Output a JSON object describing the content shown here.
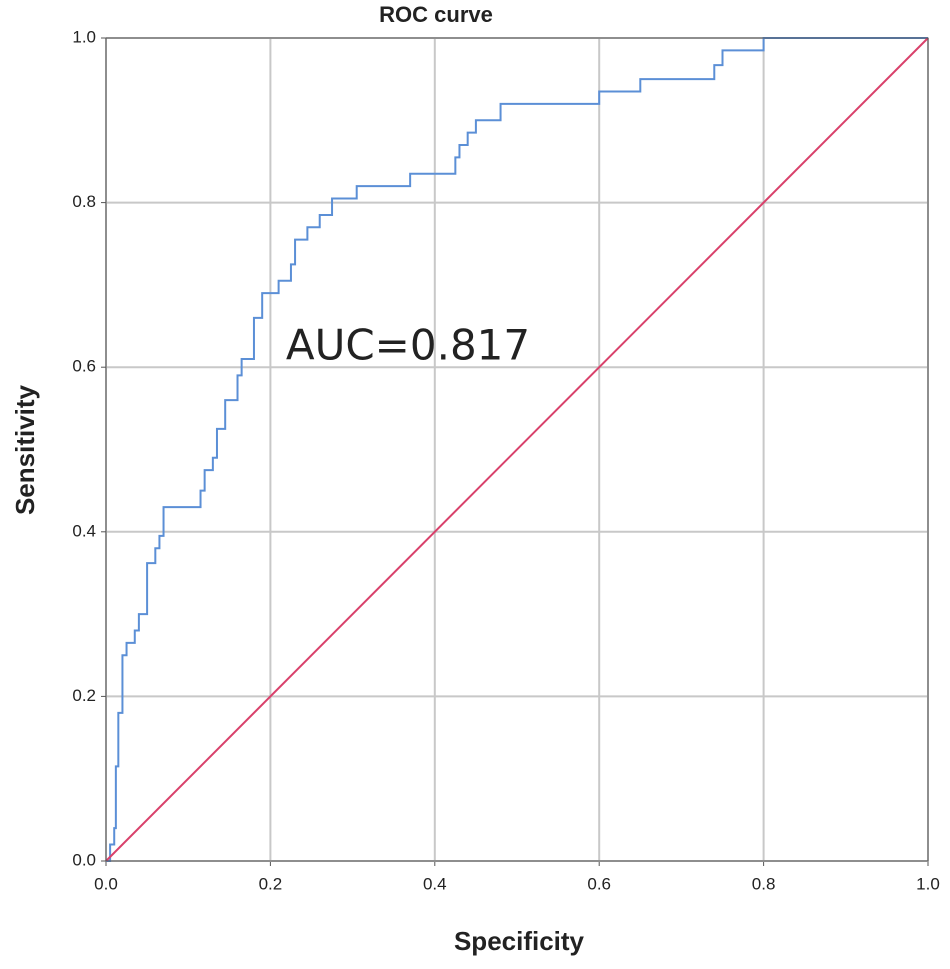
{
  "chart_data": {
    "type": "line",
    "title": "ROC curve",
    "x_label": "Specificity",
    "y_label": "Sensitivity",
    "annotation": "AUC=0.817",
    "grid": true,
    "xlim": [
      0,
      1
    ],
    "ylim": [
      0,
      1
    ],
    "xticks": [
      {
        "value": 0,
        "label": "0.0"
      },
      0.2,
      0.4,
      0.6,
      0.8,
      {
        "value": 1,
        "label": "1.0"
      }
    ],
    "yticks": [
      {
        "value": 0,
        "label": "0.0"
      },
      0.2,
      0.4,
      0.6,
      0.8,
      {
        "value": 1,
        "label": "1.0"
      }
    ],
    "series": [
      {
        "color": "#5b8fd6",
        "x": [
          0,
          0.005,
          0.005,
          0.01,
          0.01,
          0.012,
          0.012,
          0.015,
          0.015,
          0.02,
          0.02,
          0.025,
          0.025,
          0.035,
          0.035,
          0.04,
          0.04,
          0.05,
          0.05,
          0.06,
          0.06,
          0.065,
          0.065,
          0.07,
          0.07,
          0.115,
          0.115,
          0.12,
          0.12,
          0.13,
          0.13,
          0.135,
          0.135,
          0.145,
          0.145,
          0.16,
          0.16,
          0.165,
          0.165,
          0.18,
          0.18,
          0.19,
          0.19,
          0.21,
          0.21,
          0.225,
          0.225,
          0.23,
          0.23,
          0.245,
          0.245,
          0.26,
          0.26,
          0.275,
          0.275,
          0.305,
          0.305,
          0.37,
          0.37,
          0.425,
          0.425,
          0.43,
          0.43,
          0.44,
          0.44,
          0.45,
          0.45,
          0.48,
          0.48,
          0.6,
          0.6,
          0.65,
          0.65,
          0.74,
          0.74,
          0.75,
          0.75,
          0.8,
          0.8,
          1
        ],
        "values": [
          0,
          0,
          0.02,
          0.02,
          0.04,
          0.04,
          0.115,
          0.115,
          0.18,
          0.18,
          0.25,
          0.25,
          0.265,
          0.265,
          0.28,
          0.28,
          0.3,
          0.3,
          0.362,
          0.362,
          0.38,
          0.38,
          0.395,
          0.395,
          0.43,
          0.43,
          0.45,
          0.45,
          0.475,
          0.475,
          0.49,
          0.49,
          0.525,
          0.525,
          0.56,
          0.56,
          0.59,
          0.59,
          0.61,
          0.61,
          0.66,
          0.66,
          0.69,
          0.69,
          0.705,
          0.705,
          0.725,
          0.725,
          0.755,
          0.755,
          0.77,
          0.77,
          0.785,
          0.785,
          0.805,
          0.805,
          0.82,
          0.82,
          0.835,
          0.835,
          0.855,
          0.855,
          0.87,
          0.87,
          0.885,
          0.885,
          0.9,
          0.9,
          0.92,
          0.92,
          0.935,
          0.935,
          0.95,
          0.95,
          0.967,
          0.967,
          0.985,
          0.985,
          1,
          1
        ]
      },
      {
        "color": "#d9416b",
        "x": [
          0,
          1
        ],
        "values": [
          0,
          1
        ]
      }
    ]
  }
}
